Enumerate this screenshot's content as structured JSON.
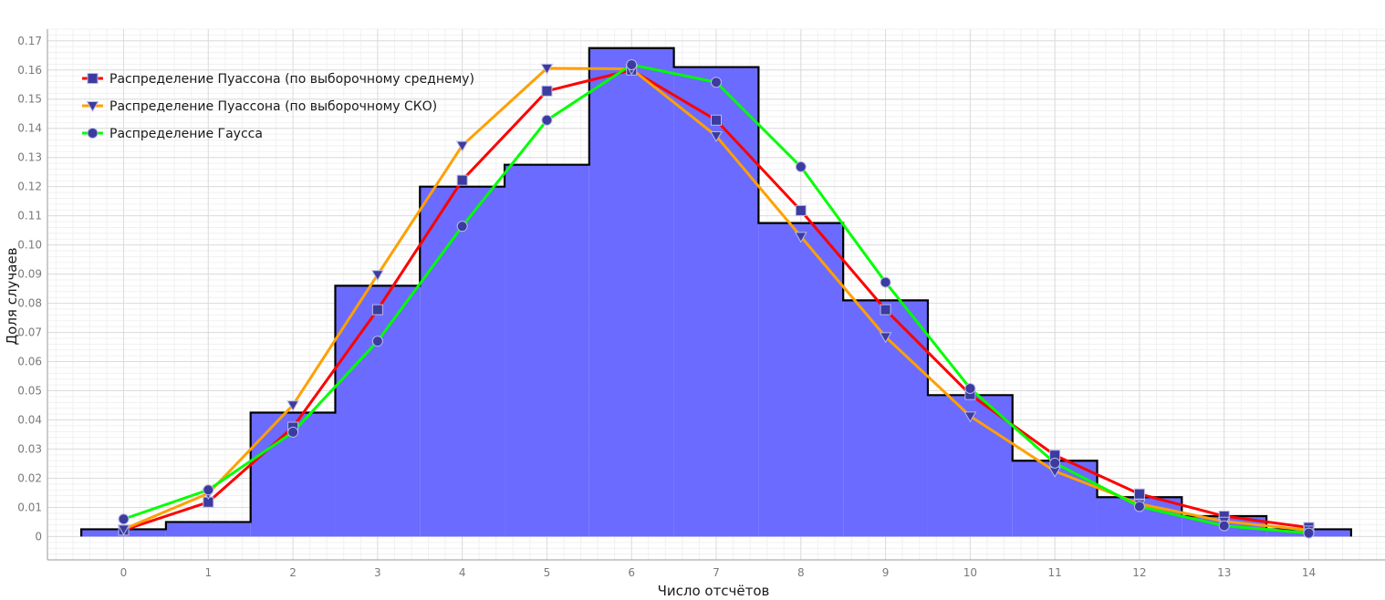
{
  "chart_data": {
    "type": "line",
    "xlabel": "Число отсчётов",
    "ylabel": "Доля случаев",
    "xlim": [
      -0.9,
      14.9
    ],
    "ylim": [
      -0.008,
      0.174
    ],
    "x_ticks": [
      0,
      1,
      2,
      3,
      4,
      5,
      6,
      7,
      8,
      9,
      10,
      11,
      12,
      13,
      14
    ],
    "y_ticks": [
      0,
      0.01,
      0.02,
      0.03,
      0.04,
      0.05,
      0.06,
      0.07,
      0.08,
      0.09,
      0.1,
      0.11,
      0.12,
      0.13,
      0.14,
      0.15,
      0.16,
      0.17
    ],
    "y_tick_labels": [
      "0",
      "0.01",
      "0.02",
      "0.03",
      "0.04",
      "0.05",
      "0.06",
      "0.07",
      "0.08",
      "0.09",
      "0.10",
      "0.11",
      "0.12",
      "0.13",
      "0.14",
      "0.15",
      "0.16",
      "0.17"
    ],
    "grid": true,
    "legend_position": "top-left",
    "histogram": {
      "color": "#6b6bff",
      "edge_color": "#000000",
      "x": [
        0,
        1,
        2,
        3,
        4,
        5,
        6,
        7,
        8,
        9,
        10,
        11,
        12,
        13,
        14
      ],
      "values": [
        0.0025,
        0.005,
        0.0425,
        0.086,
        0.12,
        0.1275,
        0.1675,
        0.161,
        0.1075,
        0.081,
        0.0485,
        0.026,
        0.0135,
        0.007,
        0.0025
      ]
    },
    "x": [
      0,
      1,
      2,
      3,
      4,
      5,
      6,
      7,
      8,
      9,
      10,
      11,
      12,
      13,
      14
    ],
    "series": [
      {
        "name": "Распределение Пуассона (по выборочному среднему)",
        "color": "#ff0000",
        "marker": "square",
        "values": [
          0.0022,
          0.0118,
          0.0375,
          0.0778,
          0.1222,
          0.1528,
          0.16,
          0.1428,
          0.1118,
          0.0778,
          0.0487,
          0.0279,
          0.0146,
          0.007,
          0.0031
        ]
      },
      {
        "name": "Распределение Пуассона (по выборочному СКО)",
        "color": "#ffa000",
        "marker": "triangle-down",
        "values": [
          0.0025,
          0.0148,
          0.0451,
          0.0898,
          0.1341,
          0.1606,
          0.1604,
          0.1374,
          0.1029,
          0.0685,
          0.0413,
          0.0224,
          0.0112,
          0.0052,
          0.0022
        ]
      },
      {
        "name": "Распределение Гаусса",
        "color": "#00ff00",
        "marker": "circle",
        "values": [
          0.006,
          0.016,
          0.0358,
          0.067,
          0.1064,
          0.1428,
          0.1618,
          0.1558,
          0.1268,
          0.0872,
          0.0508,
          0.0252,
          0.0103,
          0.0037,
          0.0012
        ]
      }
    ]
  }
}
